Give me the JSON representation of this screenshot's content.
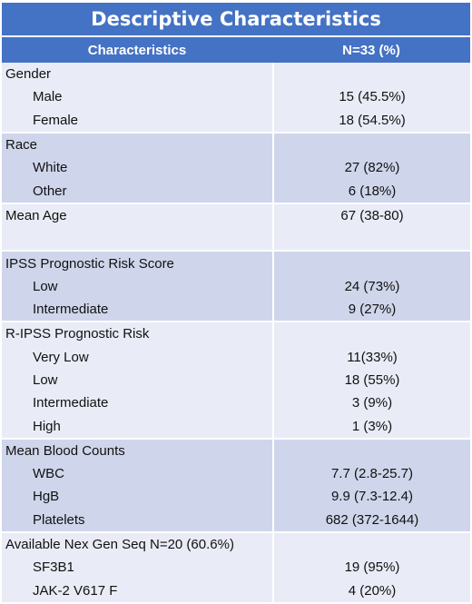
{
  "title": "Descriptive Characteristics",
  "header": {
    "col1": "Characteristics",
    "col2": "N=33 (%)"
  },
  "groups": [
    {
      "shade": "light",
      "rows": [
        {
          "label": "Gender",
          "value": "",
          "sub": false
        },
        {
          "label": "Male",
          "value": "15 (45.5%)",
          "sub": true
        },
        {
          "label": "Female",
          "value": "18 (54.5%)",
          "sub": true
        }
      ]
    },
    {
      "shade": "dark",
      "rows": [
        {
          "label": "Race",
          "value": "",
          "sub": false
        },
        {
          "label": "White",
          "value": "27 (82%)",
          "sub": true
        },
        {
          "label": "Other",
          "value": "6 (18%)",
          "sub": true
        }
      ]
    },
    {
      "shade": "light",
      "rows": [
        {
          "label": "Mean Age",
          "value": "67 (38-80)",
          "sub": false
        },
        {
          "label": "",
          "value": "",
          "sub": false
        }
      ]
    },
    {
      "shade": "dark",
      "rows": [
        {
          "label": "IPSS Prognostic Risk Score",
          "value": "",
          "sub": false
        },
        {
          "label": "Low",
          "value": "24 (73%)",
          "sub": true
        },
        {
          "label": "Intermediate",
          "value": "9 (27%)",
          "sub": true
        }
      ]
    },
    {
      "shade": "light",
      "rows": [
        {
          "label": "R-IPSS Prognostic Risk",
          "value": "",
          "sub": false
        },
        {
          "label": "Very Low",
          "value": "11(33%)",
          "sub": true
        },
        {
          "label": "Low",
          "value": "18 (55%)",
          "sub": true
        },
        {
          "label": "Intermediate",
          "value": "3 (9%)",
          "sub": true
        },
        {
          "label": "High",
          "value": "1 (3%)",
          "sub": true
        }
      ]
    },
    {
      "shade": "dark",
      "rows": [
        {
          "label": "Mean Blood Counts",
          "value": "",
          "sub": false
        },
        {
          "label": "WBC",
          "value": "7.7 (2.8-25.7)",
          "sub": true
        },
        {
          "label": "HgB",
          "value": "9.9 (7.3-12.4)",
          "sub": true
        },
        {
          "label": "Platelets",
          "value": "682 (372-1644)",
          "sub": true
        }
      ]
    },
    {
      "shade": "light",
      "rows": [
        {
          "label": "Available Nex Gen Seq  N=20  (60.6%)",
          "value": "",
          "sub": false
        },
        {
          "label": "SF3B1",
          "value": "19 (95%)",
          "sub": true
        },
        {
          "label": "JAK-2 V617 F",
          "value": "4 (20%)",
          "sub": true
        }
      ]
    }
  ]
}
